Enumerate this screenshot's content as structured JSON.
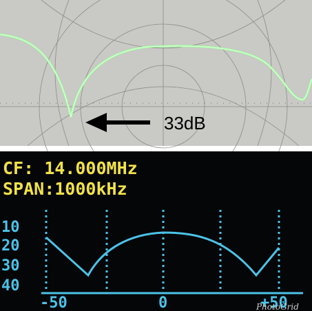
{
  "top_photo": {
    "annotation": "33dB"
  },
  "display": {
    "lines": [
      "CF: 14.000MHz",
      "SPAN:1000kHz"
    ],
    "y_labels": [
      "10",
      "20",
      "30",
      "40"
    ],
    "x_labels": [
      "-50",
      "0",
      "+50"
    ]
  },
  "watermark": "PhotoGrid"
}
